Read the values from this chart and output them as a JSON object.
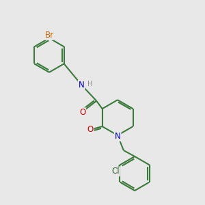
{
  "bg_color": "#e8e8e8",
  "bond_color": "#3a7a3a",
  "bond_width": 1.5,
  "atom_colors": {
    "N": "#0000cc",
    "O": "#cc0000",
    "Br": "#cc6600",
    "Cl": "#336633",
    "H": "#888888"
  },
  "font_size": 8.5,
  "fig_size": [
    3.0,
    3.0
  ],
  "dpi": 100
}
